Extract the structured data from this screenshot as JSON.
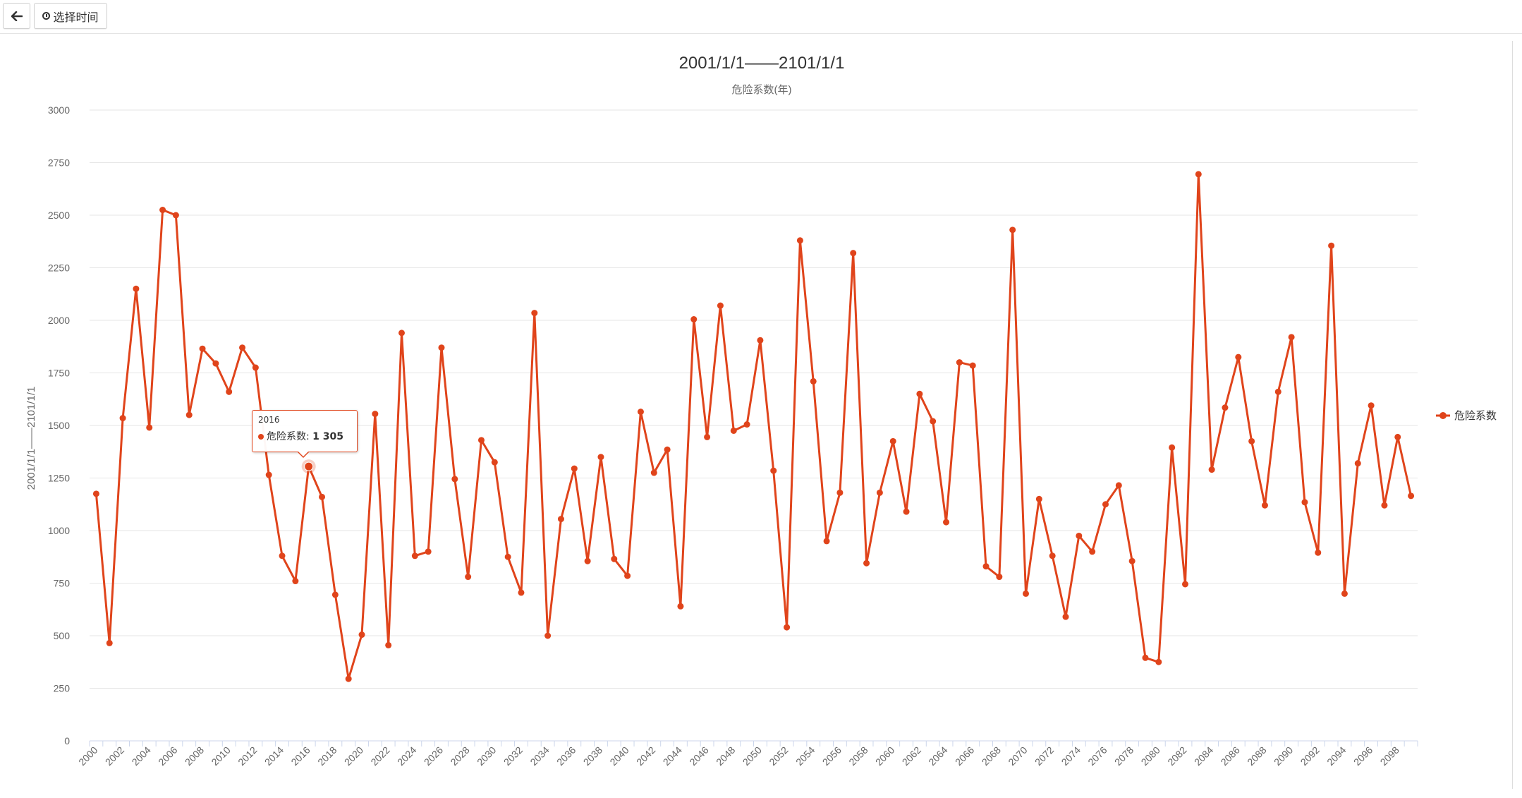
{
  "toolbar": {
    "back_icon": "arrow-left-icon",
    "time_icon": "clock-icon",
    "time_label": "选择时间"
  },
  "colors": {
    "series": "#e0441b",
    "grid": "#e6e6e6",
    "axis_text": "#666666"
  },
  "chart_data": {
    "type": "line",
    "title": "2001/1/1——2101/1/1",
    "subtitle": "危险系数(年)",
    "ylabel": "2001/1/1——2101/1/1",
    "xlabel": "",
    "ylim": [
      0,
      3000
    ],
    "yticks": [
      0,
      250,
      500,
      750,
      1000,
      1250,
      1500,
      1750,
      2000,
      2250,
      2500,
      2750,
      3000
    ],
    "x_start": 2000,
    "x_end": 2099,
    "xtick_step": 2,
    "grid": true,
    "legend_position": "right",
    "series": [
      {
        "name": "危险系数",
        "color": "#e0441b",
        "values": [
          1175,
          465,
          1535,
          2150,
          1490,
          2525,
          2500,
          1550,
          1865,
          1795,
          1660,
          1870,
          1775,
          1265,
          880,
          760,
          1305,
          1160,
          695,
          295,
          505,
          1555,
          455,
          1940,
          880,
          900,
          1870,
          1245,
          780,
          1430,
          1325,
          875,
          705,
          2035,
          500,
          1055,
          1295,
          855,
          1350,
          865,
          785,
          1565,
          1275,
          1385,
          640,
          2005,
          1445,
          2070,
          1475,
          1505,
          1905,
          1285,
          540,
          2380,
          1710,
          950,
          1180,
          2320,
          845,
          1180,
          1425,
          1090,
          1650,
          1520,
          1040,
          1800,
          1785,
          830,
          780,
          2430,
          700,
          1150,
          880,
          590,
          975,
          900,
          1125,
          1215,
          855,
          395,
          375,
          1395,
          745,
          2695,
          1290,
          1585,
          1825,
          1425,
          1120,
          1660,
          1920,
          1135,
          895,
          2355,
          700,
          1320,
          1595,
          1120,
          1445,
          1165
        ]
      }
    ],
    "tooltip": {
      "x": "2016",
      "series": "危险系数",
      "value": "1 305"
    }
  }
}
